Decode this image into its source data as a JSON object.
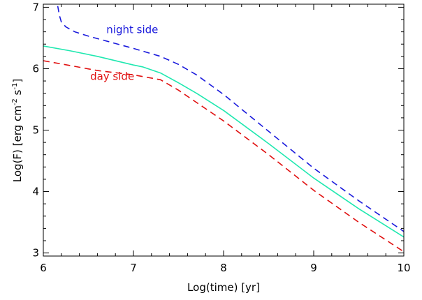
{
  "chart_data": {
    "type": "line",
    "xlabel": "Log(time)  [yr]",
    "ylabel": {
      "base": "Log(F)  [erg cm",
      "sup1": "-2",
      "mid": " s",
      "sup2": "-1",
      "end": "]"
    },
    "xlim": [
      6,
      10
    ],
    "ylim": [
      2.95,
      7.05
    ],
    "x_ticks": [
      6,
      7,
      8,
      9,
      10
    ],
    "y_ticks": [
      3,
      4,
      5,
      6,
      7
    ],
    "grid": false,
    "annotations": [
      {
        "text": "night side",
        "color": "#1a1adc",
        "x": 6.7,
        "y": 6.58
      },
      {
        "text": "day side",
        "color": "#e01010",
        "x": 6.52,
        "y": 5.82
      }
    ],
    "series": [
      {
        "label_ref": "night side",
        "color": "#1a1adc",
        "dash": "dashed",
        "points": [
          [
            6.16,
            7.02
          ],
          [
            6.18,
            6.86
          ],
          [
            6.2,
            6.76
          ],
          [
            6.25,
            6.68
          ],
          [
            6.35,
            6.6
          ],
          [
            6.5,
            6.53
          ],
          [
            6.7,
            6.45
          ],
          [
            7.0,
            6.33
          ],
          [
            7.3,
            6.2
          ],
          [
            7.5,
            6.07
          ],
          [
            7.7,
            5.9
          ],
          [
            8.0,
            5.58
          ],
          [
            8.5,
            4.98
          ],
          [
            9.0,
            4.38
          ],
          [
            9.5,
            3.85
          ],
          [
            10.0,
            3.35
          ]
        ]
      },
      {
        "label_ref": "",
        "color": "#20e8b0",
        "dash": "solid",
        "points": [
          [
            6.0,
            6.37
          ],
          [
            6.3,
            6.29
          ],
          [
            6.6,
            6.2
          ],
          [
            7.0,
            6.06
          ],
          [
            7.1,
            6.03
          ],
          [
            7.3,
            5.93
          ],
          [
            7.5,
            5.77
          ],
          [
            7.7,
            5.6
          ],
          [
            8.0,
            5.32
          ],
          [
            8.5,
            4.78
          ],
          [
            9.0,
            4.22
          ],
          [
            9.5,
            3.72
          ],
          [
            10.0,
            3.26
          ]
        ]
      },
      {
        "label_ref": "day side",
        "color": "#e01010",
        "dash": "dashed",
        "points": [
          [
            6.0,
            6.13
          ],
          [
            6.3,
            6.05
          ],
          [
            6.6,
            5.97
          ],
          [
            7.0,
            5.9
          ],
          [
            7.3,
            5.82
          ],
          [
            7.5,
            5.65
          ],
          [
            7.7,
            5.45
          ],
          [
            8.0,
            5.15
          ],
          [
            8.5,
            4.6
          ],
          [
            9.0,
            4.02
          ],
          [
            9.5,
            3.5
          ],
          [
            10.0,
            3.02
          ]
        ]
      }
    ]
  }
}
